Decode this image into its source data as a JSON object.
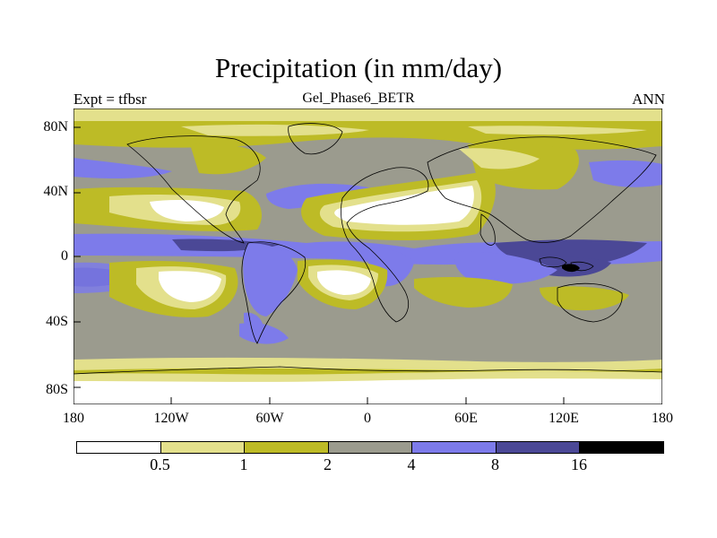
{
  "figure": {
    "title": "Precipitation (in mm/day)",
    "left_label": "Expt = tfbsr",
    "center_label": "Gel_Phase6_BETR",
    "right_label": "ANN"
  },
  "axes": {
    "y_ticks": [
      "80N",
      "40N",
      "0",
      "40S",
      "80S"
    ],
    "x_ticks": [
      "180",
      "120W",
      "60W",
      "0",
      "60E",
      "120E",
      "180"
    ]
  },
  "colorbar": {
    "colors": [
      "#ffffff",
      "#e3e08c",
      "#bdbb26",
      "#9b9b8e",
      "#7d7bea",
      "#4b4896",
      "#000000"
    ],
    "labels": [
      "0.5",
      "1",
      "2",
      "4",
      "8",
      "16"
    ]
  },
  "colors": {
    "white": "#ffffff",
    "light_yellow": "#e3e08c",
    "olive": "#bdbb26",
    "gray": "#9b9b8e",
    "blue": "#7d7bea",
    "navy": "#4b4896",
    "black": "#000000"
  }
}
